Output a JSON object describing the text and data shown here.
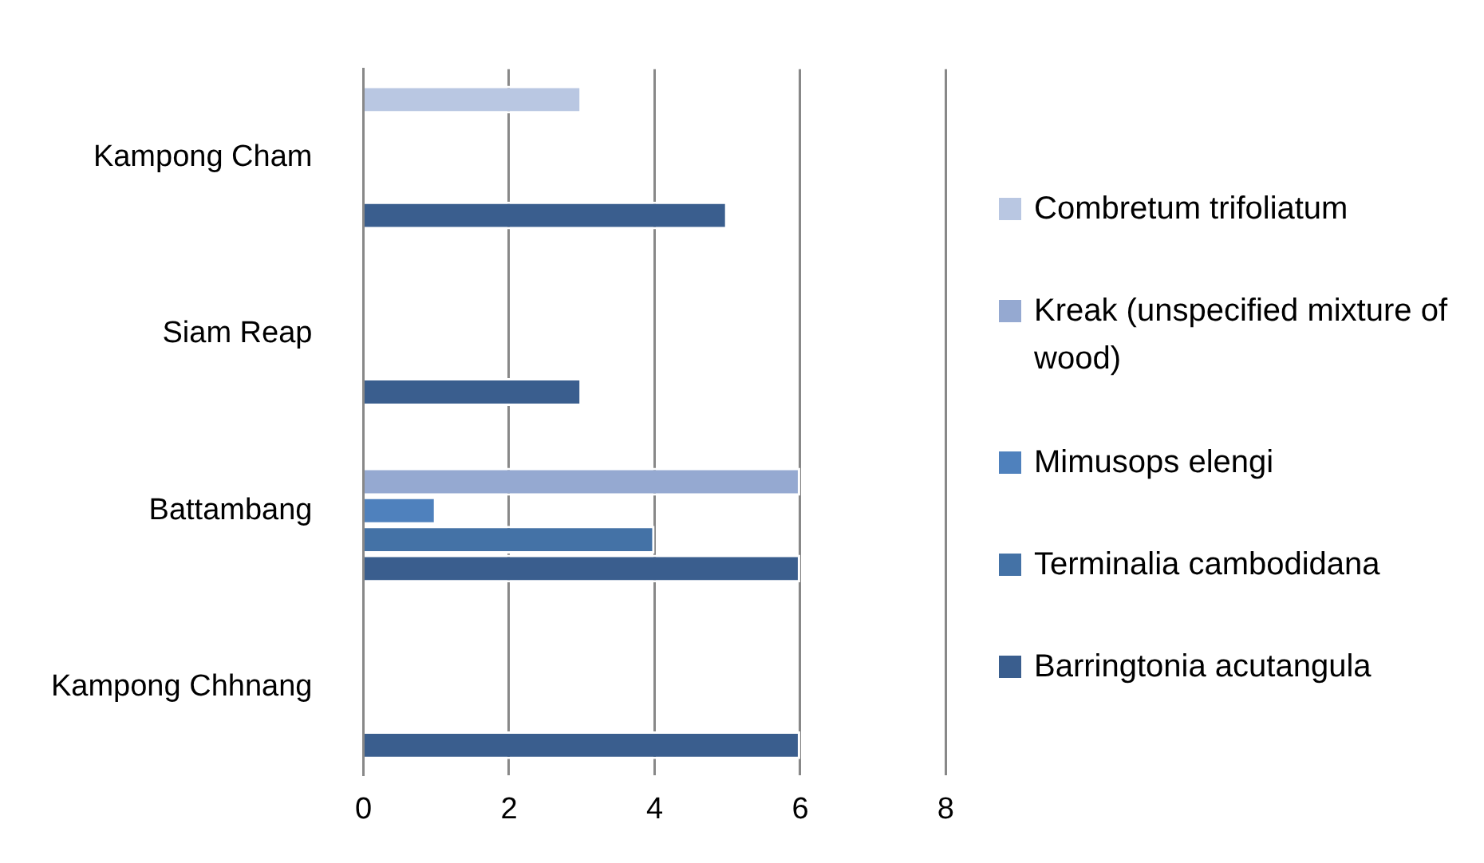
{
  "chart_data": {
    "type": "bar",
    "orientation": "horizontal",
    "categories": [
      "Kampong Cham",
      "Siam Reap",
      "Battambang",
      "Kampong Chhnang"
    ],
    "series": [
      {
        "name": "Combretum trifoliatum",
        "color": "#b9c7e2",
        "values": [
          3,
          null,
          null,
          null
        ]
      },
      {
        "name": "Kreak (unspecified mixture of wood)",
        "color": "#95a9d1",
        "values": [
          null,
          null,
          6,
          null
        ]
      },
      {
        "name": "Mimusops elengi",
        "color": "#4f81bd",
        "values": [
          null,
          null,
          1,
          null
        ]
      },
      {
        "name": "Terminalia cambodidana",
        "color": "#4472a6",
        "values": [
          null,
          null,
          4,
          null
        ]
      },
      {
        "name": "Barringtonia acutangula",
        "color": "#3a5e8e",
        "values": [
          5,
          3,
          6,
          6
        ]
      }
    ],
    "xlim": [
      0,
      8
    ],
    "xticks": [
      0,
      2,
      4,
      6,
      8
    ],
    "grid": "x",
    "legend": "right"
  }
}
